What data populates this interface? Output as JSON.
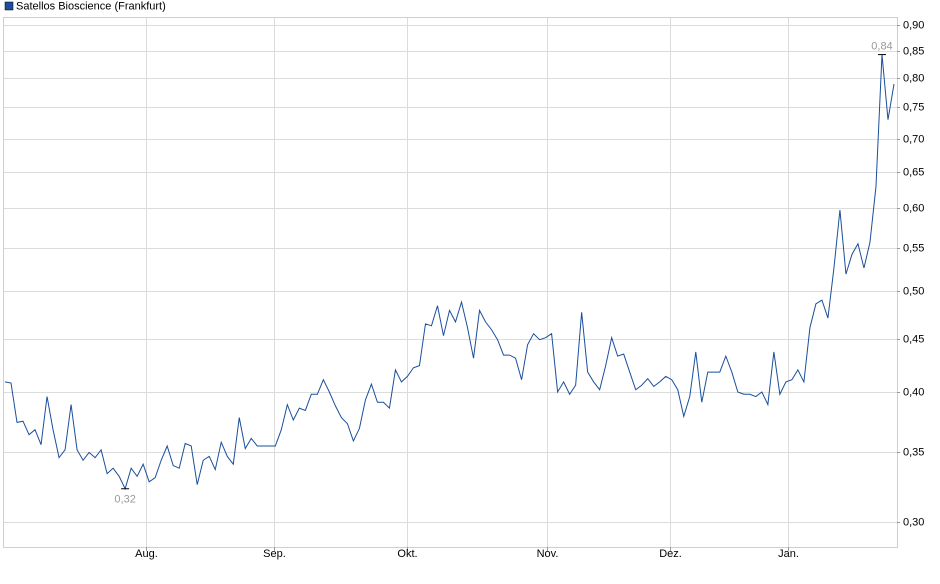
{
  "chart_data": {
    "type": "line",
    "series": [
      {
        "name": "Satellos Bioscience (Frankfurt)",
        "color": "#1a4f9c",
        "values": [
          0.409,
          0.408,
          0.374,
          0.375,
          0.364,
          0.368,
          0.356,
          0.396,
          0.368,
          0.346,
          0.352,
          0.389,
          0.352,
          0.344,
          0.35,
          0.346,
          0.352,
          0.334,
          0.338,
          0.332,
          0.323,
          0.338,
          0.332,
          0.341,
          0.328,
          0.331,
          0.344,
          0.355,
          0.34,
          0.338,
          0.357,
          0.355,
          0.326,
          0.344,
          0.347,
          0.337,
          0.358,
          0.347,
          0.341,
          0.378,
          0.353,
          0.361,
          0.355,
          0.355,
          0.355,
          0.355,
          0.368,
          0.389,
          0.376,
          0.386,
          0.384,
          0.398,
          0.398,
          0.411,
          0.4,
          0.388,
          0.378,
          0.373,
          0.359,
          0.369,
          0.393,
          0.407,
          0.391,
          0.391,
          0.386,
          0.42,
          0.409,
          0.414,
          0.422,
          0.424,
          0.465,
          0.463,
          0.484,
          0.453,
          0.479,
          0.467,
          0.488,
          0.461,
          0.431,
          0.479,
          0.467,
          0.459,
          0.449,
          0.434,
          0.434,
          0.431,
          0.411,
          0.444,
          0.455,
          0.449,
          0.451,
          0.455,
          0.4,
          0.409,
          0.398,
          0.406,
          0.477,
          0.418,
          0.409,
          0.402,
          0.424,
          0.451,
          0.433,
          0.435,
          0.418,
          0.402,
          0.406,
          0.412,
          0.405,
          0.409,
          0.414,
          0.411,
          0.402,
          0.379,
          0.396,
          0.437,
          0.391,
          0.418,
          0.418,
          0.418,
          0.433,
          0.418,
          0.4,
          0.398,
          0.398,
          0.396,
          0.4,
          0.389,
          0.437,
          0.398,
          0.409,
          0.411,
          0.42,
          0.409,
          0.461,
          0.486,
          0.49,
          0.471,
          0.526,
          0.598,
          0.519,
          0.542,
          0.555,
          0.526,
          0.557,
          0.63,
          0.843,
          0.73,
          0.79
        ]
      }
    ],
    "min_label": "0,32",
    "max_label": "0,84",
    "xlim": [
      0,
      148
    ],
    "xticks": [
      {
        "value": 23.5,
        "label": "Aug."
      },
      {
        "value": 44.8,
        "label": "Sep."
      },
      {
        "value": 67,
        "label": "Okt."
      },
      {
        "value": 90.3,
        "label": "Nov."
      },
      {
        "value": 110.7,
        "label": "Dez."
      },
      {
        "value": 130.3,
        "label": "Jan."
      }
    ],
    "ylim": [
      0.284,
      0.916
    ],
    "log_y": true,
    "yticks": [
      {
        "value": 0.3,
        "label": "0,30"
      },
      {
        "value": 0.35,
        "label": "0,35"
      },
      {
        "value": 0.4,
        "label": "0,40"
      },
      {
        "value": 0.45,
        "label": "0,45"
      },
      {
        "value": 0.5,
        "label": "0,50"
      },
      {
        "value": 0.55,
        "label": "0,55"
      },
      {
        "value": 0.6,
        "label": "0,60"
      },
      {
        "value": 0.65,
        "label": "0,65"
      },
      {
        "value": 0.7,
        "label": "0,70"
      },
      {
        "value": 0.75,
        "label": "0,75"
      },
      {
        "value": 0.8,
        "label": "0,80"
      },
      {
        "value": 0.85,
        "label": "0,85"
      },
      {
        "value": 0.9,
        "label": "0,90"
      }
    ],
    "grid": true
  }
}
